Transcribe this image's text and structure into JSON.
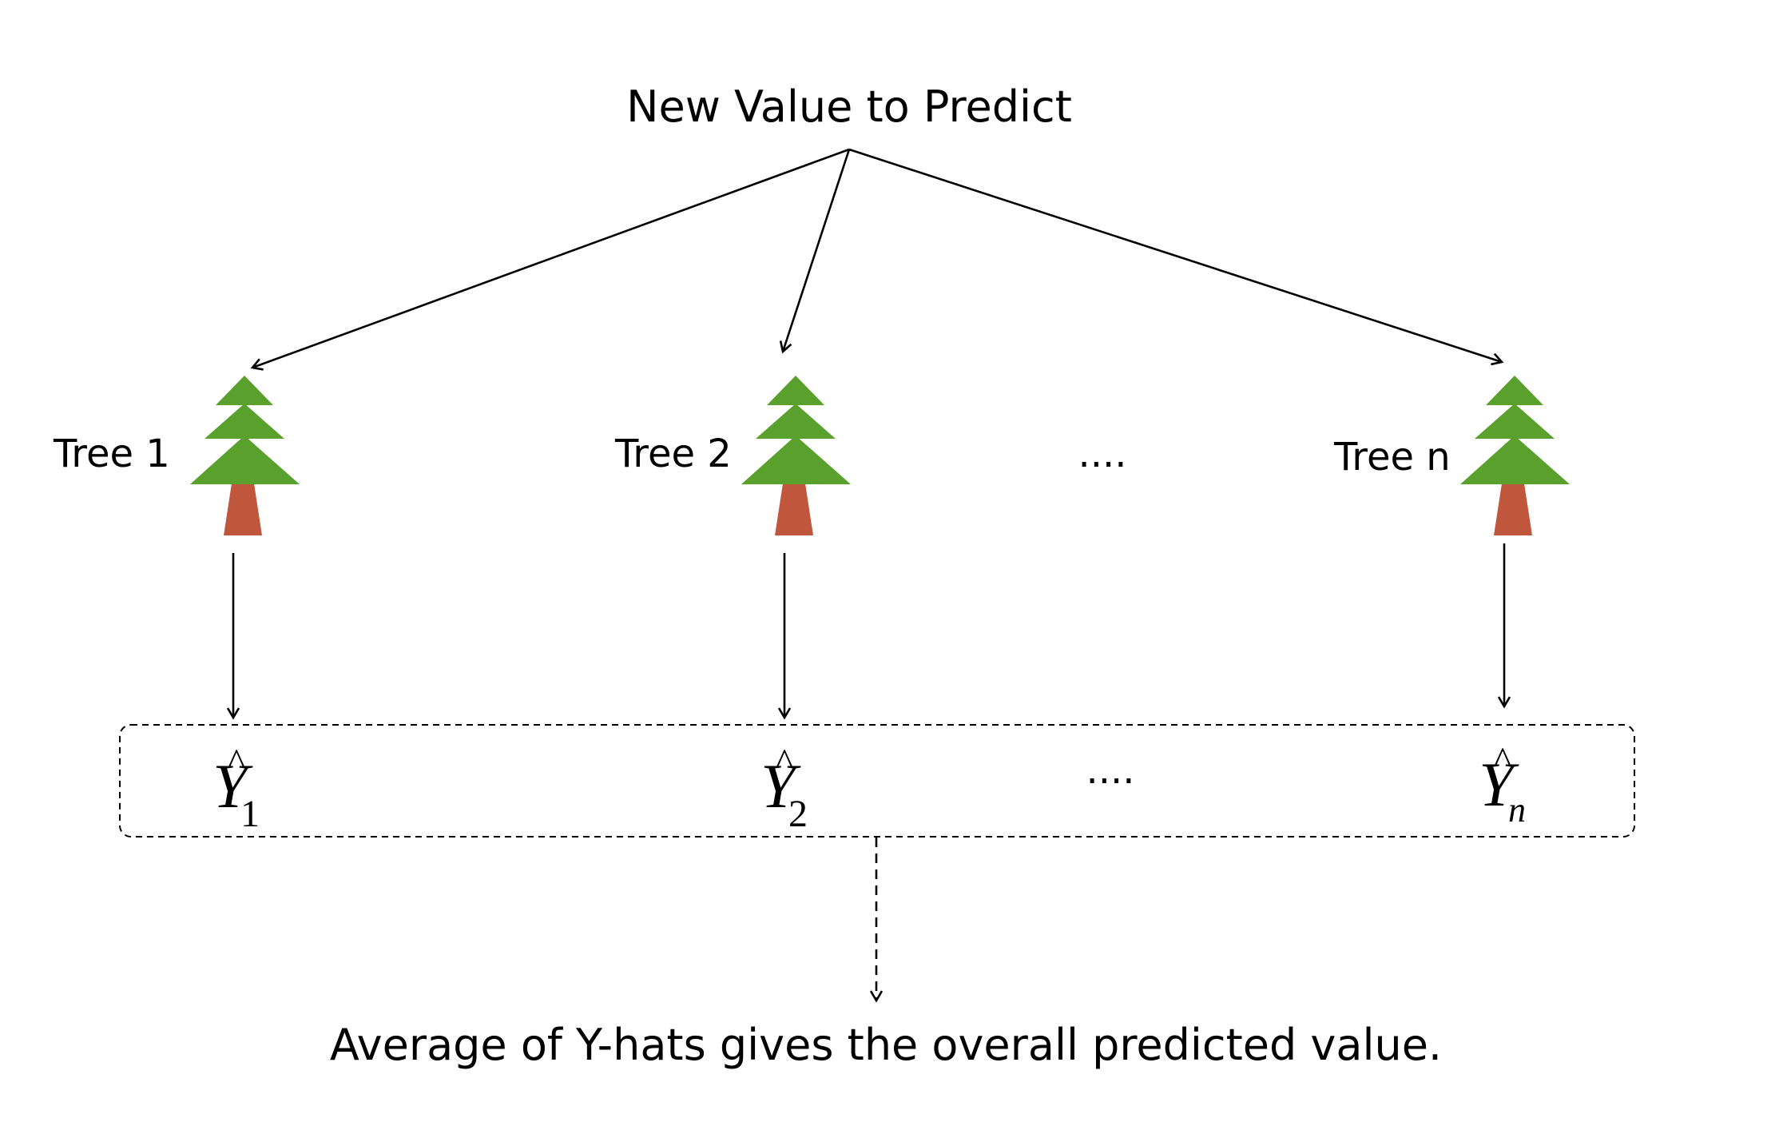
{
  "title": "New Value to Predict",
  "trees": [
    {
      "label": "Tree 1"
    },
    {
      "label": "Tree 2"
    },
    {
      "label": "Tree n"
    }
  ],
  "tree_ellipsis": "....",
  "predictions": [
    {
      "symbol": "Y",
      "hat": "^",
      "subscript": "1"
    },
    {
      "symbol": "Y",
      "hat": "^",
      "subscript": "2"
    },
    {
      "symbol": "Y",
      "hat": "^",
      "subscript": "n"
    }
  ],
  "prediction_ellipsis": "....",
  "footer": "Average of Y-hats gives the overall predicted value.",
  "colors": {
    "foliage": "#5aa02c",
    "trunk": "#c0573d",
    "line": "#000000"
  },
  "icons": {
    "tree": "pine-tree-icon"
  }
}
